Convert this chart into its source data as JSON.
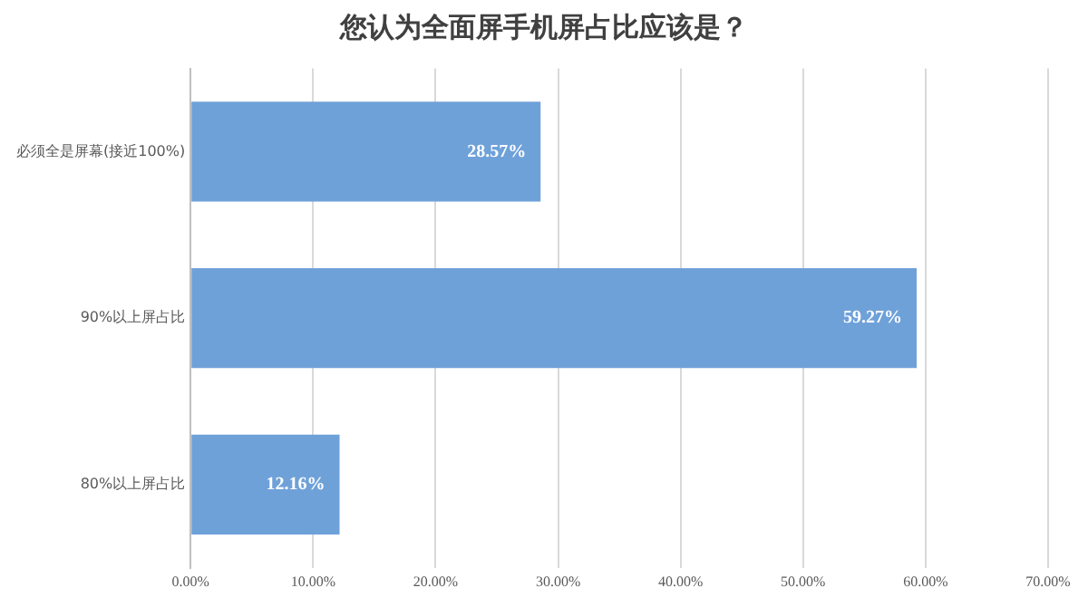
{
  "chart_data": {
    "type": "bar",
    "orientation": "horizontal",
    "title": "您认为全面屏手机屏占比应该是？",
    "categories": [
      "必须全是屏幕(接近100%)",
      "90%以上屏占比",
      "80%以上屏占比"
    ],
    "values": [
      28.57,
      59.27,
      12.16
    ],
    "color": "#6fa1d9",
    "value_labels": [
      "28.57%",
      "59.27%",
      "12.16%"
    ],
    "xlim": [
      0,
      70
    ],
    "xticks": [
      {
        "value": 0,
        "label": "0.00%"
      },
      {
        "value": 10,
        "label": "10.00%"
      },
      {
        "value": 20,
        "label": "20.00%"
      },
      {
        "value": 30,
        "label": "30.00%"
      },
      {
        "value": 40,
        "label": "40.00%"
      },
      {
        "value": 50,
        "label": "50.00%"
      },
      {
        "value": 60,
        "label": "60.00%"
      },
      {
        "value": 70,
        "label": "70.00%"
      }
    ],
    "grid": "x",
    "legend": false
  }
}
